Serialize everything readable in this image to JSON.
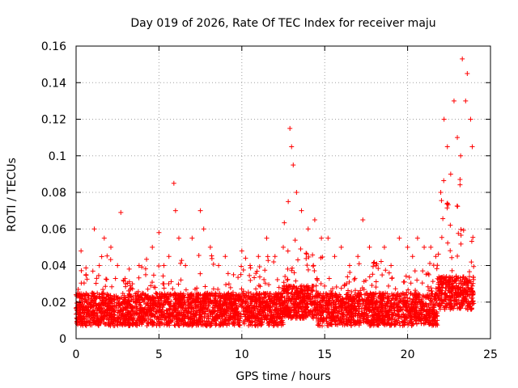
{
  "chart_data": {
    "type": "scatter",
    "title": "Day 019 of 2026, Rate Of TEC Index for receiver maju",
    "xlabel": "GPS time / hours",
    "ylabel": "ROTI / TECUs",
    "xlim": [
      0,
      25
    ],
    "ylim": [
      0,
      0.16
    ],
    "xticks": [
      0,
      5,
      10,
      15,
      20,
      25
    ],
    "yticks": [
      0,
      0.02,
      0.04,
      0.06,
      0.08,
      0.1,
      0.12,
      0.14,
      0.16
    ],
    "xtick_labels": [
      "0",
      "5",
      "10",
      "15",
      "20",
      "25"
    ],
    "ytick_labels": [
      "0",
      "0.02",
      "0.04",
      "0.06",
      "0.08",
      "0.1",
      "0.12",
      "0.14",
      "0.16"
    ],
    "grid": true,
    "marker": "+",
    "series_color": "#ff0000",
    "x_extent": [
      0,
      24
    ],
    "series": [
      {
        "name": "ROTI",
        "x": [
          0.1,
          0.3,
          0.6,
          1.1,
          1.4,
          1.7,
          2.1,
          2.5,
          2.7,
          3.0,
          3.4,
          3.8,
          4.2,
          4.6,
          5.0,
          5.3,
          5.6,
          5.9,
          6.0,
          6.2,
          6.6,
          7.0,
          7.5,
          7.7,
          8.1,
          8.6,
          9.0,
          9.5,
          10.0,
          10.5,
          11.0,
          11.5,
          12.0,
          12.5,
          12.8,
          12.9,
          13.0,
          13.1,
          13.3,
          13.6,
          14.0,
          14.4,
          14.8,
          15.2,
          15.6,
          16.0,
          16.5,
          17.0,
          17.3,
          17.7,
          18.1,
          18.6,
          19.0,
          19.5,
          20.0,
          20.3,
          20.6,
          21.0,
          21.4,
          21.7,
          22.0,
          22.2,
          22.4,
          22.6,
          22.8,
          23.0,
          23.2,
          23.3,
          23.5,
          23.6,
          23.8,
          23.9
        ],
        "y": [
          0.025,
          0.048,
          0.035,
          0.06,
          0.04,
          0.055,
          0.05,
          0.04,
          0.069,
          0.03,
          0.03,
          0.04,
          0.035,
          0.05,
          0.058,
          0.04,
          0.045,
          0.085,
          0.07,
          0.055,
          0.04,
          0.055,
          0.07,
          0.06,
          0.05,
          0.04,
          0.045,
          0.035,
          0.048,
          0.04,
          0.045,
          0.055,
          0.045,
          0.05,
          0.075,
          0.115,
          0.105,
          0.095,
          0.08,
          0.07,
          0.06,
          0.065,
          0.055,
          0.055,
          0.045,
          0.05,
          0.04,
          0.045,
          0.065,
          0.05,
          0.04,
          0.05,
          0.04,
          0.055,
          0.05,
          0.045,
          0.055,
          0.05,
          0.05,
          0.045,
          0.08,
          0.12,
          0.105,
          0.09,
          0.13,
          0.11,
          0.1,
          0.153,
          0.13,
          0.145,
          0.12,
          0.105
        ]
      }
    ]
  }
}
